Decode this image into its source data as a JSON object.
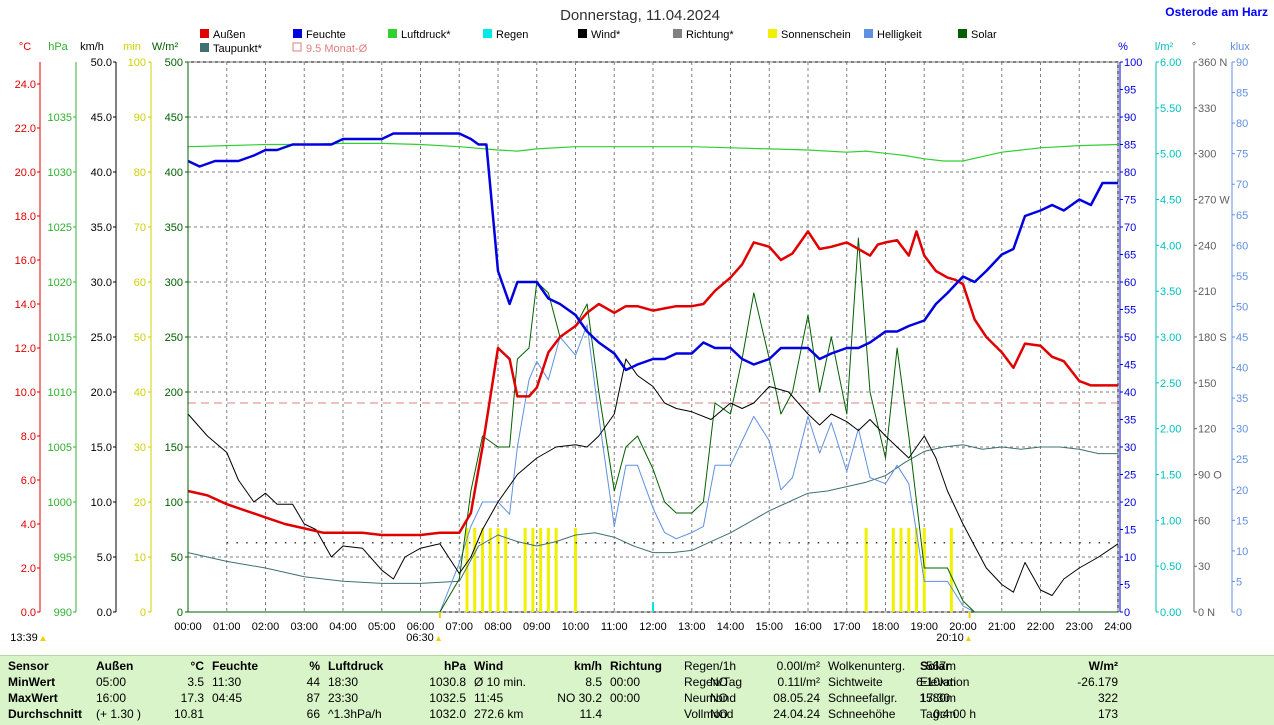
{
  "title": "Donnerstag, 11.04.2024",
  "station": "Osterode am Harz",
  "legend": [
    {
      "label": "Außen",
      "color": "#e00000"
    },
    {
      "label": "Feuchte",
      "color": "#0000e0"
    },
    {
      "label": "Luftdruck*",
      "color": "#30d030"
    },
    {
      "label": "Regen",
      "color": "#00e8e8"
    },
    {
      "label": "Wind*",
      "color": "#000000"
    },
    {
      "label": "Richtung*",
      "color": "#808080"
    },
    {
      "label": "Sonnenschein",
      "color": "#f0f000"
    },
    {
      "label": "Helligkeit",
      "color": "#6090e0"
    },
    {
      "label": "Solar",
      "color": "#006000"
    },
    {
      "label": "Taupunkt*",
      "color": "#407070"
    },
    {
      "label": "9.5 Monat-Ø",
      "color": "#e08080"
    }
  ],
  "axis_heads": {
    "temp": "°C",
    "hpa": "hPa",
    "kmh": "km/h",
    "min": "min",
    "wm2": "W/m²",
    "pct": "%",
    "lm2": "l/m²",
    "deg": "°",
    "klux": "klux"
  },
  "axes": {
    "temp": [
      "0.0",
      "2.0",
      "4.0",
      "6.0",
      "8.0",
      "10.0",
      "12.0",
      "14.0",
      "16.0",
      "18.0",
      "20.0",
      "22.0",
      "24.0"
    ],
    "hpa": [
      "990",
      "995",
      "1000",
      "1005",
      "1010",
      "1015",
      "1020",
      "1025",
      "1030",
      "1035"
    ],
    "kmh": [
      "0.0",
      "5.0",
      "10.0",
      "15.0",
      "20.0",
      "25.0",
      "30.0",
      "35.0",
      "40.0",
      "45.0",
      "50.0"
    ],
    "min": [
      "0",
      "10",
      "20",
      "30",
      "40",
      "50",
      "60",
      "70",
      "80",
      "90",
      "100"
    ],
    "wm2": [
      "0",
      "50",
      "100",
      "150",
      "200",
      "250",
      "300",
      "350",
      "400",
      "450",
      "500"
    ],
    "pct": [
      "0",
      "5",
      "10",
      "15",
      "20",
      "25",
      "30",
      "35",
      "40",
      "45",
      "50",
      "55",
      "60",
      "65",
      "70",
      "75",
      "80",
      "85",
      "90",
      "95",
      "100"
    ],
    "lm2": [
      "0.00",
      "0.50",
      "1.00",
      "1.50",
      "2.00",
      "2.50",
      "3.00",
      "3.50",
      "4.00",
      "4.50",
      "5.00",
      "5.50",
      "6.00"
    ],
    "deg": [
      "0 N",
      "30",
      "60",
      "90 O",
      "120",
      "150",
      "180 S",
      "210",
      "240",
      "270 W",
      "300",
      "330",
      "360 N"
    ],
    "klux": [
      "0",
      "5",
      "10",
      "15",
      "20",
      "25",
      "30",
      "35",
      "40",
      "45",
      "50",
      "55",
      "60",
      "65",
      "70",
      "75",
      "80",
      "85",
      "90"
    ],
    "time": [
      "00:00",
      "01:00",
      "02:00",
      "03:00",
      "04:00",
      "05:00",
      "06:00",
      "07:00",
      "08:00",
      "09:00",
      "10:00",
      "11:00",
      "12:00",
      "13:00",
      "14:00",
      "15:00",
      "16:00",
      "17:00",
      "18:00",
      "19:00",
      "20:00",
      "21:00",
      "22:00",
      "23:00",
      "24:00"
    ]
  },
  "markers": {
    "sunrise": "06:30",
    "sunset": "20:10",
    "now": "13:39"
  },
  "chart_data": {
    "type": "line",
    "x_unit": "hours",
    "series": [
      {
        "name": "Außen",
        "unit": "°C",
        "color": "#e00000",
        "x": [
          0,
          0.5,
          1,
          1.5,
          2,
          2.5,
          3,
          3.5,
          4,
          4.5,
          5,
          5.5,
          6,
          6.5,
          7,
          7.3,
          7.6,
          8,
          8.3,
          8.5,
          8.8,
          9,
          9.3,
          9.6,
          10,
          10.3,
          10.6,
          11,
          11.3,
          11.6,
          12,
          12.3,
          12.6,
          13,
          13.3,
          13.6,
          14,
          14.3,
          14.6,
          15,
          15.3,
          15.6,
          16,
          16.3,
          16.6,
          17,
          17.3,
          17.6,
          17.8,
          18,
          18.3,
          18.6,
          18.8,
          19,
          19.3,
          19.6,
          19.8,
          20,
          20.3,
          20.6,
          21,
          21.3,
          21.6,
          22,
          22.3,
          22.6,
          23,
          23.3,
          23.6,
          24
        ],
        "y": [
          5.5,
          5.3,
          4.9,
          4.6,
          4.3,
          4.0,
          3.8,
          3.6,
          3.6,
          3.6,
          3.5,
          3.5,
          3.5,
          3.6,
          3.6,
          4.5,
          7.5,
          12.0,
          11.5,
          9.8,
          9.8,
          10.2,
          11.8,
          12.5,
          13.0,
          13.6,
          14.0,
          13.6,
          13.9,
          13.9,
          13.7,
          13.8,
          13.9,
          13.9,
          14.0,
          14.6,
          15.2,
          15.8,
          16.8,
          16.6,
          16.0,
          16.3,
          17.3,
          16.5,
          16.6,
          16.8,
          16.5,
          16.2,
          16.7,
          16.8,
          16.9,
          16.2,
          17.3,
          16.2,
          15.5,
          15.2,
          15.1,
          14.9,
          13.3,
          12.5,
          11.8,
          11.1,
          12.2,
          12.1,
          11.6,
          11.4,
          10.5,
          10.3,
          10.3,
          10.3
        ]
      },
      {
        "name": "Feuchte",
        "unit": "%",
        "color": "#0000e0",
        "x": [
          0,
          0.3,
          0.7,
          1,
          1.3,
          1.7,
          2,
          2.3,
          2.7,
          3,
          3.3,
          3.7,
          4,
          4.3,
          4.7,
          5,
          5.3,
          5.7,
          6,
          6.3,
          6.7,
          7,
          7.3,
          7.5,
          7.7,
          8,
          8.3,
          8.5,
          8.8,
          9,
          9.3,
          9.6,
          10,
          10.3,
          10.6,
          11,
          11.3,
          11.6,
          12,
          12.3,
          12.6,
          13,
          13.3,
          13.6,
          14,
          14.3,
          14.6,
          15,
          15.3,
          15.6,
          16,
          16.3,
          16.6,
          17,
          17.3,
          17.6,
          18,
          18.3,
          18.6,
          19,
          19.3,
          19.6,
          20,
          20.3,
          20.6,
          21,
          21.3,
          21.6,
          22,
          22.3,
          22.6,
          23,
          23.3,
          23.6,
          24
        ],
        "y": [
          82,
          81,
          82,
          82,
          82,
          83,
          84,
          84,
          85,
          85,
          85,
          85,
          86,
          86,
          86,
          86,
          87,
          87,
          87,
          87,
          87,
          87,
          86,
          85,
          85,
          62,
          56,
          60,
          60,
          60,
          57,
          56,
          54,
          51,
          49,
          47,
          44,
          45,
          46,
          46,
          47,
          47,
          49,
          48,
          48,
          46,
          45,
          46,
          48,
          48,
          48,
          46,
          47,
          48,
          48,
          49,
          51,
          51,
          52,
          53,
          56,
          58,
          61,
          60,
          62,
          65,
          66,
          72,
          73,
          74,
          73,
          75,
          74,
          78,
          78
        ]
      },
      {
        "name": "Luftdruck*",
        "unit": "hPa",
        "color": "#30d030",
        "x": [
          0,
          1,
          2,
          3,
          4,
          5,
          6,
          7,
          8,
          8.5,
          9,
          10,
          11,
          12,
          13,
          14,
          15,
          16,
          17,
          17.5,
          18,
          18.5,
          19,
          19.5,
          20,
          20.5,
          21,
          22,
          23,
          24
        ],
        "y": [
          1032.3,
          1032.4,
          1032.5,
          1032.5,
          1032.6,
          1032.6,
          1032.5,
          1032.3,
          1032.0,
          1031.9,
          1032.1,
          1032.3,
          1032.3,
          1032.3,
          1032.3,
          1032.2,
          1032.1,
          1032.0,
          1031.8,
          1031.9,
          1031.7,
          1031.5,
          1031.2,
          1031.0,
          1031.0,
          1031.4,
          1031.8,
          1032.2,
          1032.4,
          1032.5
        ]
      },
      {
        "name": "Wind*",
        "unit": "km/h",
        "color": "#000000",
        "x": [
          0,
          0.5,
          1,
          1.3,
          1.7,
          2,
          2.3,
          2.7,
          3,
          3.3,
          3.7,
          4,
          4.5,
          5,
          5.3,
          5.6,
          6,
          6.5,
          7,
          7.3,
          7.6,
          8,
          8.5,
          9,
          9.5,
          10,
          10.3,
          10.6,
          11,
          11.3,
          11.6,
          12,
          12.3,
          12.6,
          13,
          13.5,
          14,
          14.3,
          14.6,
          15,
          15.5,
          16,
          16.3,
          16.6,
          17,
          17.3,
          17.6,
          18,
          18.3,
          18.6,
          19,
          19.3,
          19.6,
          20,
          20.3,
          20.6,
          21,
          21.3,
          21.6,
          22,
          22.3,
          22.6,
          23,
          23.5,
          24
        ],
        "y": [
          18,
          16,
          14.5,
          12,
          10,
          10.8,
          9.8,
          9.8,
          8,
          7.5,
          5,
          6,
          5.8,
          3.8,
          3,
          5,
          5.8,
          6.2,
          3.5,
          5,
          7.5,
          10,
          12.5,
          14,
          15,
          15.2,
          15,
          16,
          18,
          23,
          21.5,
          20.5,
          19,
          18.5,
          18.2,
          17.5,
          19,
          18.5,
          19,
          20.5,
          20,
          18,
          17,
          18,
          17.3,
          16.5,
          17.5,
          16,
          15,
          14,
          16,
          14,
          11,
          8,
          6,
          4,
          2.5,
          1.8,
          4.5,
          2,
          1.5,
          3,
          4,
          5,
          6.2
        ]
      },
      {
        "name": "Solar",
        "unit": "W/m²",
        "color": "#006000",
        "x": [
          0,
          6.5,
          7,
          7.3,
          7.6,
          8,
          8.3,
          8.5,
          8.8,
          9,
          9.3,
          9.6,
          10,
          10.3,
          10.6,
          11,
          11.3,
          11.6,
          12,
          12.3,
          12.6,
          13,
          13.3,
          13.6,
          14,
          14.3,
          14.6,
          15,
          15.3,
          15.6,
          16,
          16.3,
          16.6,
          17,
          17.3,
          17.6,
          18,
          18.3,
          18.6,
          19,
          19.3,
          19.6,
          20,
          20.3,
          20.6,
          24
        ],
        "y": [
          0,
          0,
          30,
          110,
          160,
          150,
          150,
          230,
          240,
          300,
          290,
          250,
          260,
          280,
          200,
          110,
          150,
          160,
          130,
          100,
          90,
          90,
          100,
          190,
          180,
          230,
          290,
          230,
          180,
          200,
          270,
          200,
          250,
          180,
          340,
          200,
          140,
          240,
          160,
          40,
          40,
          40,
          10,
          0,
          0,
          0
        ]
      },
      {
        "name": "Helligkeit",
        "unit": "klux",
        "color": "#6090e0",
        "x": [
          0,
          6.5,
          7,
          7.3,
          7.6,
          8,
          8.3,
          8.5,
          8.8,
          9,
          9.3,
          9.6,
          10,
          10.3,
          10.6,
          11,
          11.3,
          11.6,
          12,
          12.3,
          12.6,
          13,
          13.3,
          13.6,
          14,
          14.3,
          14.6,
          15,
          15.3,
          15.6,
          16,
          16.3,
          16.6,
          17,
          17.3,
          17.6,
          18,
          18.3,
          18.6,
          19,
          19.3,
          19.6,
          20,
          20.3,
          20.6,
          24
        ],
        "y": [
          0,
          0,
          8,
          14,
          18,
          18,
          16,
          27,
          38,
          41,
          38,
          45,
          42,
          47,
          32,
          14,
          24,
          24,
          17,
          13,
          12,
          13,
          14,
          24,
          24,
          28,
          32,
          28,
          20,
          22,
          32,
          26,
          31,
          23,
          30,
          22,
          21,
          24,
          21,
          5,
          5,
          5,
          1,
          0,
          0,
          0
        ]
      },
      {
        "name": "Taupunkt*",
        "unit": "°C",
        "color": "#407070",
        "x": [
          0,
          1,
          2,
          3,
          4,
          5,
          6,
          7,
          7.5,
          8,
          8.5,
          9,
          9.5,
          10,
          10.5,
          11,
          11.5,
          12,
          12.5,
          13,
          13.5,
          14,
          14.5,
          15,
          15.5,
          16,
          16.5,
          17,
          17.5,
          18,
          18.5,
          19,
          19.5,
          20,
          20.5,
          21,
          21.5,
          22,
          22.5,
          23,
          23.5,
          24
        ],
        "y": [
          2.7,
          2.3,
          2.0,
          1.6,
          1.4,
          1.3,
          1.3,
          1.4,
          3.0,
          3.5,
          3.2,
          3.0,
          3.2,
          3.5,
          3.6,
          3.4,
          3.0,
          2.7,
          2.7,
          2.8,
          3.2,
          3.6,
          4.1,
          4.6,
          5.0,
          5.4,
          5.5,
          5.7,
          5.9,
          6.2,
          6.8,
          7.3,
          7.5,
          7.6,
          7.4,
          7.5,
          7.4,
          7.5,
          7.5,
          7.4,
          7.2,
          7.2
        ]
      }
    ],
    "monat_avg_temp": 9.5,
    "sunshine_bars": [
      7.2,
      7.4,
      7.6,
      7.8,
      8,
      8.2,
      8.7,
      8.9,
      9.1,
      9.3,
      9.5,
      10,
      17.5,
      18.2,
      18.4,
      18.6,
      18.8,
      19,
      19.7
    ],
    "rain_ticks": [
      12.0
    ],
    "xlim": [
      0,
      24
    ],
    "ylim_temp": [
      0,
      25
    ],
    "ylim_pct": [
      0,
      100
    ],
    "ylim_kmh": [
      0,
      50
    ],
    "ylim_wm2": [
      0,
      500
    ],
    "ylim_hpa": [
      990,
      1040
    ],
    "ylim_klux": [
      0,
      90
    ],
    "grid": true,
    "legend_position": "top"
  },
  "stats": {
    "headers": [
      "Sensor",
      "Außen",
      "°C",
      "Feuchte",
      "%",
      "Luftdruck",
      "hPa",
      "Wind",
      "km/h",
      "Richtung",
      ""
    ],
    "rows": [
      [
        "MinWert",
        "05:00",
        "3.5",
        "11:30",
        "44",
        "18:30",
        "1030.8",
        "Ø 10 min.",
        "8.5",
        "00:00",
        "NO"
      ],
      [
        "MaxWert",
        "16:00",
        "17.3",
        "04:45",
        "87",
        "23:30",
        "1032.5",
        "11:45",
        "NO 30.2",
        "00:00",
        "NO"
      ],
      [
        "Durchschnitt",
        "(+ 1.30 )",
        "10.81",
        "",
        "66",
        "^1.3hPa/h",
        "1032.0",
        "272.6 km",
        "11.4",
        "",
        "NO"
      ]
    ],
    "extra1": [
      [
        "Regen/1h",
        "0.00l/m²",
        "Wolkenunterg.",
        "567m"
      ],
      [
        "Regen/Tag",
        "0.11l/m²",
        "Sichtweite",
        "6-10km"
      ],
      [
        "Neumond",
        "08.05.24",
        "Schneefallgr.",
        "1580m"
      ],
      [
        "Vollmond",
        "24.04.24",
        "Schneehöhe",
        "0cm"
      ]
    ],
    "solar": [
      [
        "Solar",
        "W/m²"
      ],
      [
        "Elevation",
        "-26.179"
      ],
      [
        "17:30",
        "322"
      ],
      [
        "Tag:4:00 h",
        "173"
      ]
    ]
  }
}
